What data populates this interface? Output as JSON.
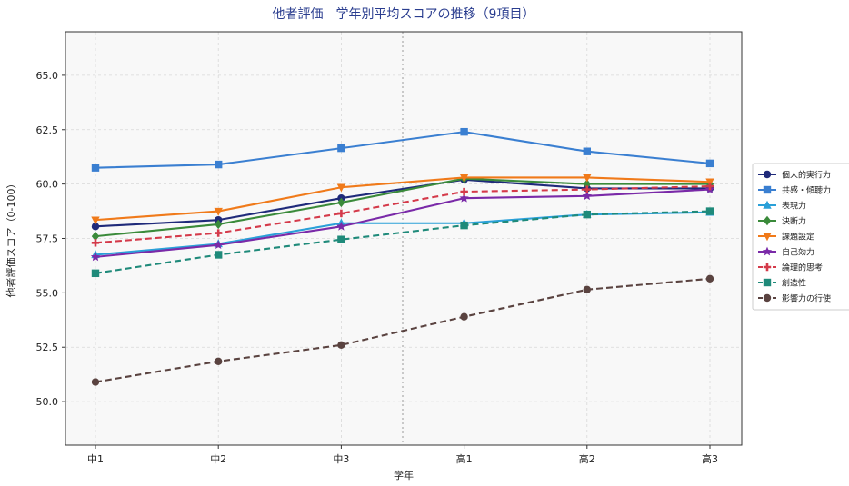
{
  "chart_data": {
    "type": "line",
    "title": "他者評価　学年別平均スコアの推移（9項目）",
    "xlabel": "学年",
    "ylabel": "他者評価スコア（0-100）",
    "categories": [
      "中1",
      "中2",
      "中3",
      "高1",
      "高2",
      "高3"
    ],
    "ylim": [
      48.0,
      67.0
    ],
    "yticks": [
      50.0,
      52.5,
      55.0,
      57.5,
      60.0,
      62.5,
      65.0
    ],
    "grid": true,
    "legend_position": "right",
    "divider_after_category": "中3",
    "series": [
      {
        "name": "個人的実行力",
        "values": [
          58.05,
          58.35,
          59.35,
          60.2,
          59.8,
          59.8
        ],
        "color": "#1f2a7a",
        "marker": "circle",
        "dash": false
      },
      {
        "name": "共感・傾聴力",
        "values": [
          60.75,
          60.9,
          61.65,
          62.4,
          61.5,
          60.95
        ],
        "color": "#3a7fd1",
        "marker": "square",
        "dash": false
      },
      {
        "name": "表現力",
        "values": [
          56.75,
          57.25,
          58.2,
          58.2,
          58.6,
          58.7
        ],
        "color": "#2aa0d8",
        "marker": "triangle",
        "dash": false
      },
      {
        "name": "決断力",
        "values": [
          57.6,
          58.15,
          59.15,
          60.25,
          60.0,
          60.0
        ],
        "color": "#3a8a3a",
        "marker": "diamond",
        "dash": false
      },
      {
        "name": "課題設定",
        "values": [
          58.35,
          58.75,
          59.85,
          60.3,
          60.3,
          60.1
        ],
        "color": "#f07a1a",
        "marker": "triangle-down",
        "dash": false
      },
      {
        "name": "自己効力",
        "values": [
          56.65,
          57.2,
          58.05,
          59.35,
          59.45,
          59.75
        ],
        "color": "#7a2aa8",
        "marker": "star",
        "dash": false
      },
      {
        "name": "論理的思考",
        "values": [
          57.3,
          57.75,
          58.65,
          59.65,
          59.75,
          59.9
        ],
        "color": "#d43a4a",
        "marker": "plus",
        "dash": true
      },
      {
        "name": "創造性",
        "values": [
          55.9,
          56.75,
          57.45,
          58.1,
          58.6,
          58.75
        ],
        "color": "#1f8a7a",
        "marker": "square",
        "dash": true
      },
      {
        "name": "影響力の行使",
        "values": [
          50.9,
          51.85,
          52.6,
          53.9,
          55.15,
          55.65
        ],
        "color": "#5a4340",
        "marker": "circle",
        "dash": true
      }
    ]
  }
}
